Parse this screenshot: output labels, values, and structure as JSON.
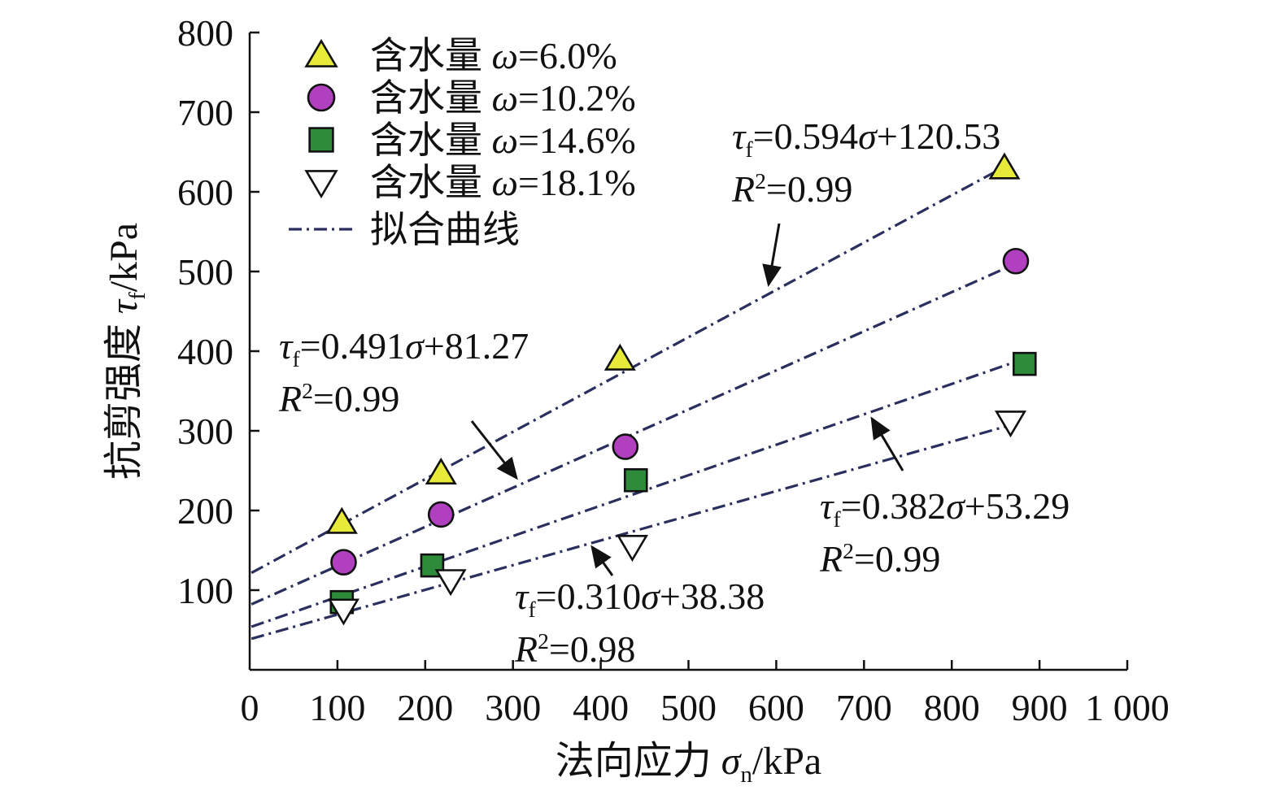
{
  "chart_data": {
    "type": "scatter",
    "xlabel": "法向应力 σn/kPa",
    "ylabel": "抗剪强度 τf/kPa",
    "xlim": [
      0,
      1000
    ],
    "ylim": [
      0,
      800
    ],
    "x_ticks": [
      0,
      100,
      200,
      300,
      400,
      500,
      600,
      700,
      800,
      900,
      1000
    ],
    "x_tick_labels": [
      "0",
      "100",
      "200",
      "300",
      "400",
      "500",
      "600",
      "700",
      "800",
      "900",
      "1 000"
    ],
    "y_ticks": [
      100,
      200,
      300,
      400,
      500,
      600,
      700,
      800
    ],
    "y_tick_labels": [
      "100",
      "200",
      "300",
      "400",
      "500",
      "600",
      "700",
      "800"
    ],
    "grid": false,
    "legend_position": "top-left",
    "fit_legend_label": "拟合曲线",
    "series": [
      {
        "name": "含水量 ω=6.0%",
        "marker": "triangle-up",
        "color": "#e8ea3a",
        "x": [
          105,
          218,
          422,
          860
        ],
        "y": [
          185,
          247,
          390,
          630
        ],
        "fit": {
          "slope": 0.594,
          "intercept": 120.53,
          "equation": "τf=0.594σ+120.53",
          "r2": "R2=0.99"
        }
      },
      {
        "name": "含水量 ω=10.2%",
        "marker": "circle",
        "color": "#b040c0",
        "x": [
          107,
          218,
          428,
          873
        ],
        "y": [
          135,
          195,
          280,
          513
        ],
        "fit": {
          "slope": 0.491,
          "intercept": 81.27,
          "equation": "τf=0.491σ+81.27",
          "r2": "R2=0.99"
        }
      },
      {
        "name": "含水量 ω=14.6%",
        "marker": "square",
        "color": "#2e8b3a",
        "x": [
          105,
          208,
          440,
          883
        ],
        "y": [
          85,
          131,
          238,
          384
        ],
        "fit": {
          "slope": 0.382,
          "intercept": 53.29,
          "equation": "τf=0.382σ+53.29",
          "r2": "R2=0.99"
        }
      },
      {
        "name": "含水量 ω=18.1%",
        "marker": "triangle-down",
        "color": "#ffffff",
        "x": [
          107,
          229,
          436,
          867
        ],
        "y": [
          75,
          112,
          155,
          311
        ],
        "fit": {
          "slope": 0.31,
          "intercept": 38.38,
          "equation": "τf=0.310σ+38.38",
          "r2": "R2=0.98"
        }
      }
    ],
    "fit_line_color": "#2a2f5e"
  }
}
